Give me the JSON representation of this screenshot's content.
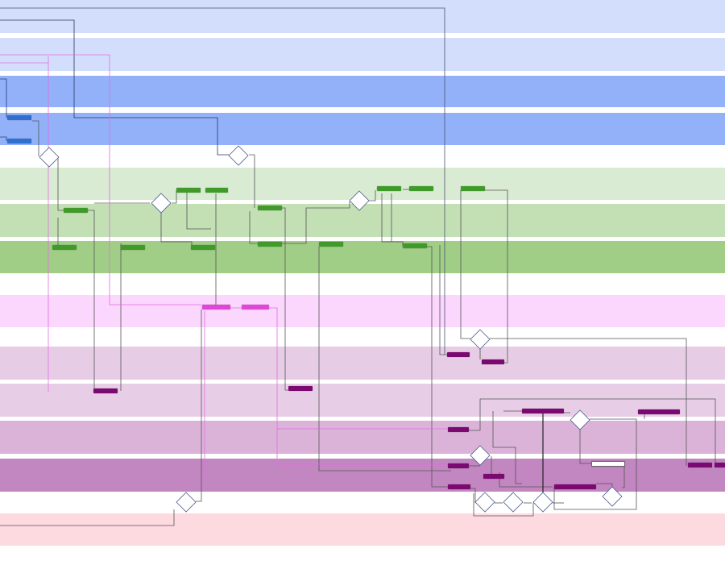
{
  "lanes": [
    {
      "id": "l1",
      "label": "",
      "color": "#d2defc"
    },
    {
      "id": "l2",
      "label": "",
      "color": "#d2defc"
    },
    {
      "id": "l3",
      "label": "",
      "color": "#93b1f8"
    },
    {
      "id": "l4",
      "label": "",
      "color": "#93b1f8"
    },
    {
      "id": "l5",
      "label": "",
      "color": "#d9ebd2"
    },
    {
      "id": "l6",
      "label": "",
      "color": "#c2e0b4"
    },
    {
      "id": "l7",
      "label": "",
      "color": "#a0ce86"
    },
    {
      "id": "l8",
      "label": "",
      "color": "#fbd6fd"
    },
    {
      "id": "l9",
      "label": "",
      "color": "#e7cce6"
    },
    {
      "id": "l10",
      "label": "",
      "color": "#e8cde7"
    },
    {
      "id": "l11",
      "label": "",
      "color": "#dbb3d9"
    },
    {
      "id": "l12",
      "label": "",
      "color": "#c286c1"
    },
    {
      "id": "l13",
      "label": "",
      "color": "#fdd9e0"
    }
  ],
  "nodes": {
    "b1": "",
    "b2": "",
    "g1": "",
    "g2": "",
    "g3": "",
    "g4": "",
    "g5": "",
    "g6": "",
    "g7": "",
    "g8": "",
    "g9": "",
    "g10": "",
    "g11": "",
    "g12": "",
    "g13": "",
    "g14": "",
    "p1": "",
    "p2": "",
    "m1": "",
    "m2": "",
    "m3": "",
    "m4": "",
    "m5": "",
    "m6": "",
    "m7": "",
    "m8": "",
    "m9": "",
    "m10": "",
    "m11": "",
    "m12": "",
    "m13": "",
    "o1": ""
  },
  "decisions": {
    "d1": "",
    "d2": "",
    "d3": "",
    "d4": "",
    "d5": "",
    "d6": "",
    "d7": "",
    "d8": "",
    "d9": "",
    "d10": "",
    "d11": "",
    "d12": ""
  }
}
